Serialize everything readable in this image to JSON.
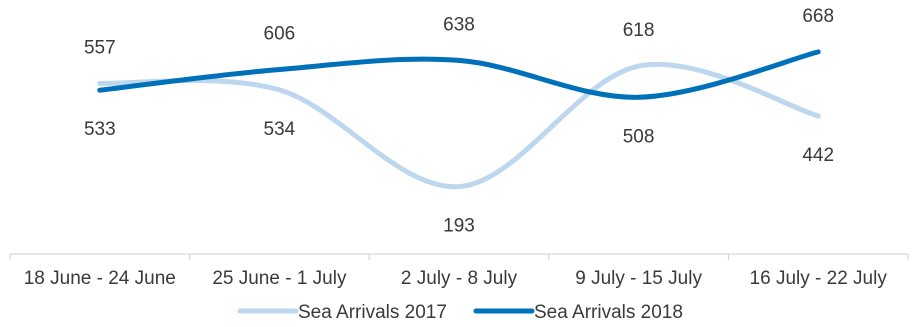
{
  "chart_data": {
    "type": "line",
    "categories": [
      "18 June - 24 June",
      "25 June - 1 July",
      "2 July - 8 July",
      "9 July - 15 July",
      "16 July - 22 July"
    ],
    "series": [
      {
        "name": "Sea Arrivals 2017",
        "values": [
          557,
          534,
          193,
          618,
          442
        ],
        "color": "#bdd7ee"
      },
      {
        "name": "Sea Arrivals 2018",
        "values": [
          533,
          606,
          638,
          508,
          668
        ],
        "color": "#0070b8"
      }
    ],
    "title": "",
    "xlabel": "",
    "ylabel": "",
    "smooth": true,
    "legend": "bottom-center",
    "grid": false
  }
}
